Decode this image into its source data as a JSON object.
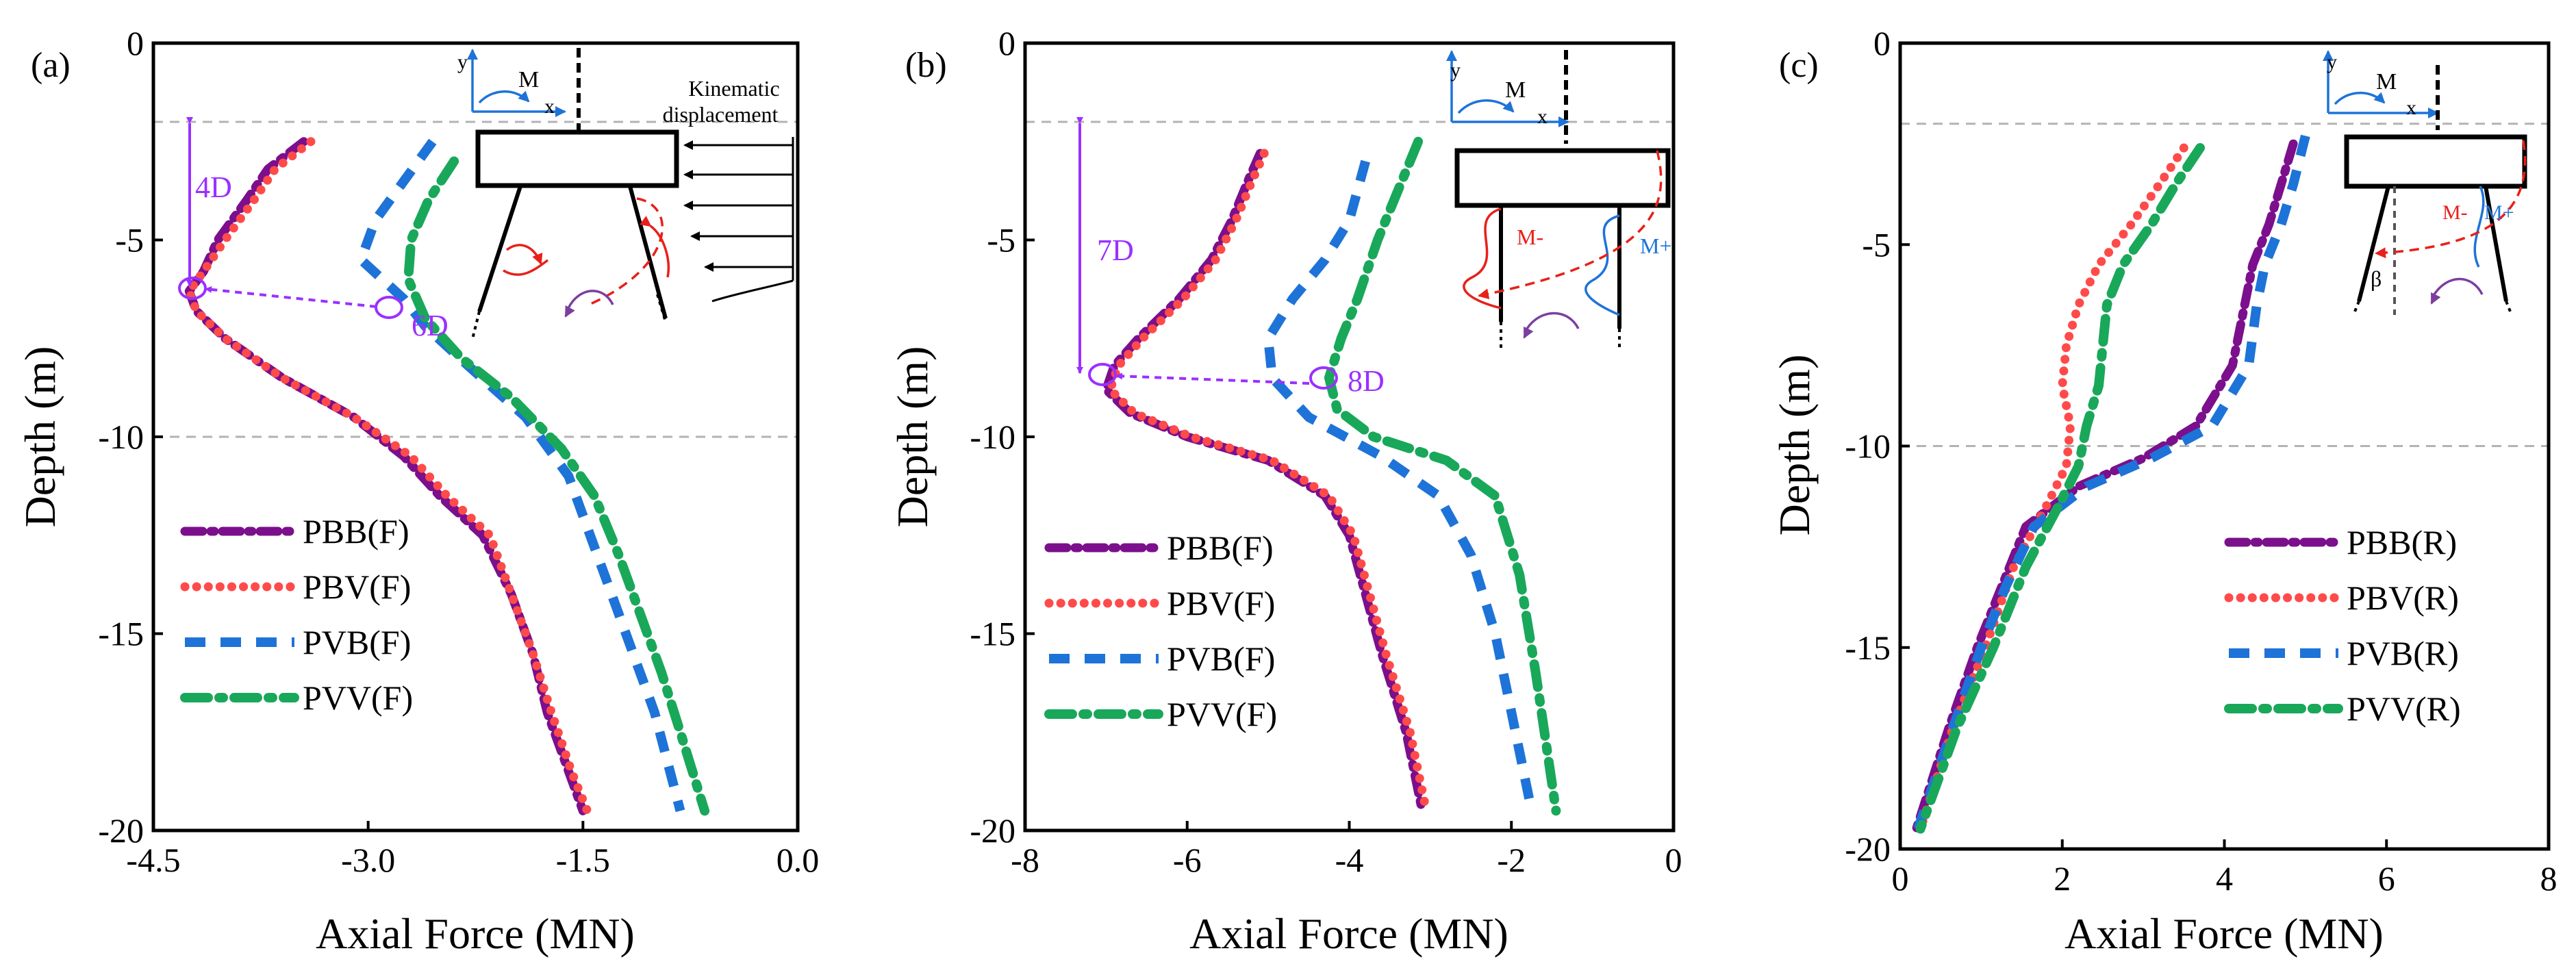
{
  "colors": {
    "PBB": "#7b0f8c",
    "PBV": "#ff4a4a",
    "PVB": "#1e73d8",
    "PVV": "#19a85a",
    "annotation": "#9b30ff",
    "inset_red": "#e8201a",
    "inset_blue": "#1e73d8",
    "guide": "#b3b3b3"
  },
  "chart_data": [
    {
      "type": "line",
      "panel_label": "(a)",
      "xlabel": "Axial Force (MN)",
      "ylabel": "Depth (m)",
      "xlim": [
        -4.5,
        0.0
      ],
      "ylim": [
        -20,
        0
      ],
      "xticks": [
        -4.5,
        -3.0,
        -1.5,
        0.0
      ],
      "xtick_labels": [
        "-4.5",
        "-3.0",
        "-1.5",
        "0.0"
      ],
      "yticks": [
        0,
        -5,
        -10,
        -15,
        -20
      ],
      "ytick_labels": [
        "0",
        "-5",
        "-10",
        "-15",
        "-20"
      ],
      "guide_depths": [
        -2,
        -10
      ],
      "series": [
        {
          "name": "PBB(F)",
          "key": "PBB",
          "x": [
            -3.45,
            -3.7,
            -3.85,
            -4.05,
            -4.15,
            -4.25,
            -4.2,
            -4.0,
            -3.6,
            -3.1,
            -2.75,
            -2.5,
            -2.2,
            -2.0,
            -1.85,
            -1.75,
            -1.6,
            -1.5
          ],
          "y": [
            -2.5,
            -3.2,
            -4.0,
            -5.0,
            -5.8,
            -6.3,
            -6.8,
            -7.5,
            -8.5,
            -9.5,
            -10.5,
            -11.5,
            -12.5,
            -14.0,
            -15.5,
            -17.0,
            -18.5,
            -19.5
          ]
        },
        {
          "name": "PBV(F)",
          "key": "PBV",
          "x": [
            -3.4,
            -3.65,
            -3.8,
            -4.0,
            -4.15,
            -4.25,
            -4.2,
            -4.0,
            -3.6,
            -3.1,
            -2.7,
            -2.45,
            -2.15,
            -2.0,
            -1.85,
            -1.72,
            -1.58,
            -1.47
          ],
          "y": [
            -2.5,
            -3.2,
            -4.0,
            -5.0,
            -5.8,
            -6.3,
            -6.8,
            -7.5,
            -8.5,
            -9.5,
            -10.5,
            -11.5,
            -12.5,
            -14.0,
            -15.5,
            -17.0,
            -18.5,
            -19.5
          ]
        },
        {
          "name": "PVB(F)",
          "key": "PVB",
          "x": [
            -2.55,
            -2.75,
            -2.95,
            -3.05,
            -2.75,
            -2.6,
            -2.3,
            -1.9,
            -1.6,
            -1.45,
            -1.3,
            -1.15,
            -1.0,
            -0.82
          ],
          "y": [
            -2.5,
            -3.5,
            -4.5,
            -5.5,
            -6.5,
            -7.2,
            -8.2,
            -9.5,
            -11.0,
            -12.5,
            -14.0,
            -15.5,
            -17.0,
            -19.5
          ]
        },
        {
          "name": "PVV(F)",
          "key": "PVV",
          "x": [
            -2.4,
            -2.58,
            -2.7,
            -2.72,
            -2.6,
            -2.35,
            -2.0,
            -1.65,
            -1.42,
            -1.25,
            -1.1,
            -0.95,
            -0.82,
            -0.65
          ],
          "y": [
            -3.0,
            -4.0,
            -5.0,
            -6.0,
            -7.0,
            -8.0,
            -9.0,
            -10.3,
            -11.5,
            -13.0,
            -14.5,
            -16.0,
            -17.5,
            -19.5
          ]
        }
      ],
      "annotations": {
        "span_label": "4D",
        "arrow_label": "6D"
      },
      "inset_texts": {
        "y": "y",
        "m": "M",
        "x": "x",
        "kinematic_line1": "Kinematic",
        "kinematic_line2": "displacement"
      }
    },
    {
      "type": "line",
      "panel_label": "(b)",
      "xlabel": "Axial Force (MN)",
      "ylabel": "Depth (m)",
      "xlim": [
        -8,
        0
      ],
      "ylim": [
        -20,
        0
      ],
      "xticks": [
        -8,
        -6,
        -4,
        -2,
        0
      ],
      "xtick_labels": [
        "-8",
        "-6",
        "-4",
        "-2",
        "0"
      ],
      "yticks": [
        0,
        -5,
        -10,
        -15,
        -20
      ],
      "ytick_labels": [
        "0",
        "-5",
        "-10",
        "-15",
        "-20"
      ],
      "guide_depths": [
        -2
      ],
      "series": [
        {
          "name": "PBB(F)",
          "key": "PBB",
          "x": [
            -5.1,
            -5.25,
            -5.45,
            -5.7,
            -6.1,
            -6.6,
            -6.9,
            -7.0,
            -6.7,
            -6.0,
            -5.0,
            -4.3,
            -4.0,
            -3.8,
            -3.6,
            -3.3,
            -3.1
          ],
          "y": [
            -2.8,
            -3.5,
            -4.5,
            -5.5,
            -6.5,
            -7.5,
            -8.2,
            -8.8,
            -9.4,
            -10.0,
            -10.6,
            -11.5,
            -12.5,
            -14.0,
            -15.5,
            -17.5,
            -19.5
          ]
        },
        {
          "name": "PBV(F)",
          "key": "PBV",
          "x": [
            -5.05,
            -5.2,
            -5.4,
            -5.65,
            -6.05,
            -6.55,
            -6.85,
            -6.95,
            -6.65,
            -5.95,
            -4.95,
            -4.25,
            -3.95,
            -3.75,
            -3.55,
            -3.25,
            -3.05
          ],
          "y": [
            -2.8,
            -3.5,
            -4.5,
            -5.5,
            -6.5,
            -7.5,
            -8.2,
            -8.8,
            -9.4,
            -10.0,
            -10.6,
            -11.5,
            -12.5,
            -14.0,
            -15.5,
            -17.5,
            -19.5
          ]
        },
        {
          "name": "PVB(F)",
          "key": "PVB",
          "x": [
            -3.8,
            -4.0,
            -4.3,
            -4.7,
            -5.0,
            -4.95,
            -4.5,
            -3.6,
            -2.9,
            -2.5,
            -2.2,
            -2.0,
            -1.75
          ],
          "y": [
            -3.0,
            -4.5,
            -5.5,
            -6.5,
            -7.5,
            -8.5,
            -9.5,
            -10.5,
            -11.5,
            -13.0,
            -15.0,
            -17.0,
            -19.5
          ]
        },
        {
          "name": "PVV(F)",
          "key": "PVV",
          "x": [
            -3.15,
            -3.35,
            -3.65,
            -3.9,
            -4.1,
            -4.25,
            -4.15,
            -3.7,
            -2.8,
            -2.2,
            -1.9,
            -1.7,
            -1.45
          ],
          "y": [
            -2.5,
            -3.5,
            -5.0,
            -6.5,
            -7.5,
            -8.5,
            -9.3,
            -10.0,
            -10.6,
            -11.5,
            -13.5,
            -16.0,
            -19.5
          ]
        }
      ],
      "annotations": {
        "span_label": "7D",
        "arrow_label": "8D"
      },
      "inset_texts": {
        "y": "y",
        "m": "M",
        "x": "x",
        "m_minus": "M-",
        "m_plus": "M+"
      }
    },
    {
      "type": "line",
      "panel_label": "(c)",
      "xlabel": "Axial Force (MN)",
      "ylabel": "Depth (m)",
      "xlim": [
        0,
        8
      ],
      "ylim": [
        -20,
        0
      ],
      "xticks": [
        0,
        2,
        4,
        6,
        8
      ],
      "xtick_labels": [
        "0",
        "2",
        "4",
        "6",
        "8"
      ],
      "yticks": [
        0,
        -5,
        -10,
        -15,
        -20
      ],
      "ytick_labels": [
        "0",
        "-5",
        "-10",
        "-15",
        "-20"
      ],
      "guide_depths": [
        -2,
        -10
      ],
      "series": [
        {
          "name": "PBB(R)",
          "key": "PBB",
          "x": [
            4.85,
            4.7,
            4.55,
            4.35,
            4.25,
            4.1,
            3.65,
            3.0,
            2.2,
            1.55,
            1.25,
            0.95,
            0.6,
            0.2
          ],
          "y": [
            -2.5,
            -3.5,
            -4.5,
            -5.5,
            -6.5,
            -8.0,
            -9.5,
            -10.3,
            -11.0,
            -12.0,
            -13.5,
            -15.0,
            -17.0,
            -19.5
          ]
        },
        {
          "name": "PBV(R)",
          "key": "PBV",
          "x": [
            3.5,
            3.2,
            2.85,
            2.45,
            2.2,
            2.05,
            2.0,
            2.1,
            2.05,
            1.8,
            1.4,
            1.05,
            0.65,
            0.25
          ],
          "y": [
            -2.6,
            -3.5,
            -4.5,
            -5.5,
            -6.5,
            -7.5,
            -8.5,
            -9.5,
            -10.5,
            -11.5,
            -13.0,
            -15.0,
            -17.0,
            -19.5
          ]
        },
        {
          "name": "PVB(R)",
          "key": "PVB",
          "x": [
            5.0,
            4.85,
            4.7,
            4.5,
            4.4,
            4.3,
            3.85,
            3.1,
            2.3,
            1.65,
            1.3,
            1.0,
            0.65,
            0.22
          ],
          "y": [
            -2.3,
            -3.5,
            -4.5,
            -5.5,
            -6.5,
            -8.0,
            -9.5,
            -10.3,
            -11.0,
            -12.0,
            -13.5,
            -15.0,
            -17.0,
            -19.5
          ]
        },
        {
          "name": "PVV(R)",
          "key": "PVV",
          "x": [
            3.7,
            3.4,
            3.1,
            2.75,
            2.55,
            2.5,
            2.45,
            2.3,
            2.2,
            1.95,
            1.55,
            1.15,
            0.7,
            0.25
          ],
          "y": [
            -2.6,
            -3.5,
            -4.5,
            -5.5,
            -6.5,
            -7.5,
            -8.5,
            -9.5,
            -10.5,
            -11.5,
            -13.0,
            -15.0,
            -17.0,
            -19.5
          ]
        }
      ],
      "annotations": {},
      "inset_texts": {
        "y": "y",
        "m": "M",
        "x": "x",
        "m_minus": "M-",
        "m_plus": "M+",
        "beta": "β"
      }
    }
  ]
}
